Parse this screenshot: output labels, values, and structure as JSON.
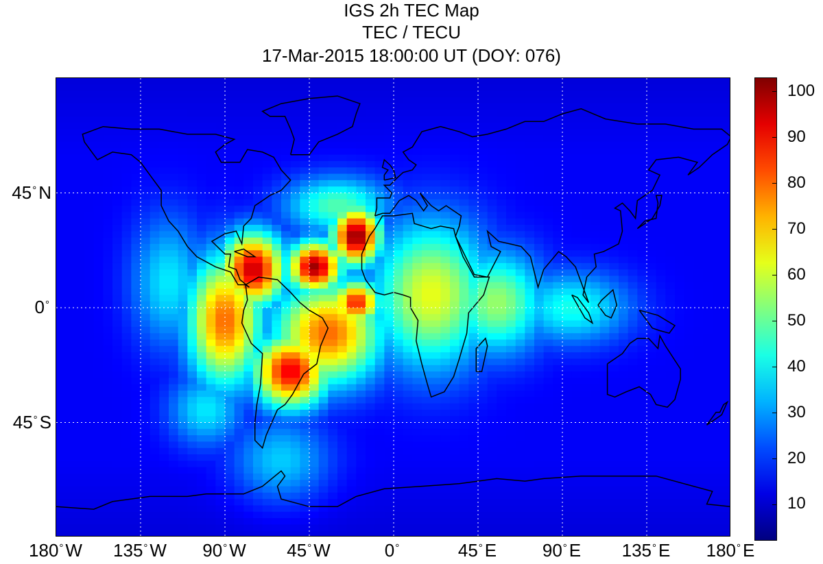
{
  "chart_data": {
    "type": "heatmap",
    "title": "IGS 2h TEC Map",
    "subtitle": "TEC / TECU",
    "timestamp": "17-Mar-2015 18:00:00 UT (DOY: 076)",
    "x_range": [
      -180,
      180
    ],
    "y_range": [
      -90,
      90
    ],
    "x_ticks": [
      {
        "value": -180,
        "label": "180",
        "hemi": "W"
      },
      {
        "value": -135,
        "label": "135",
        "hemi": "W"
      },
      {
        "value": -90,
        "label": "90",
        "hemi": "W"
      },
      {
        "value": -45,
        "label": "45",
        "hemi": "W"
      },
      {
        "value": 0,
        "label": "0",
        "hemi": ""
      },
      {
        "value": 45,
        "label": "45",
        "hemi": "E"
      },
      {
        "value": 90,
        "label": "90",
        "hemi": "E"
      },
      {
        "value": 135,
        "label": "135",
        "hemi": "E"
      },
      {
        "value": 180,
        "label": "180",
        "hemi": "E"
      }
    ],
    "y_ticks": [
      {
        "value": 45,
        "label": "45",
        "hemi": "N"
      },
      {
        "value": 0,
        "label": "0",
        "hemi": ""
      },
      {
        "value": -45,
        "label": "45",
        "hemi": "S"
      }
    ],
    "grid": true,
    "colorbar": {
      "range": [
        2,
        103
      ],
      "ticks": [
        10,
        20,
        30,
        40,
        50,
        60,
        70,
        80,
        90,
        100
      ],
      "colormap": "jet"
    },
    "background_tec": 14,
    "tec_peaks": [
      {
        "lon": -75,
        "lat": 15,
        "tec": 96,
        "sx": 12,
        "sy": 10
      },
      {
        "lon": -55,
        "lat": -25,
        "tec": 92,
        "sx": 14,
        "sy": 10
      },
      {
        "lon": -42,
        "lat": 16,
        "tec": 100,
        "sx": 10,
        "sy": 7
      },
      {
        "lon": -20,
        "lat": 28,
        "tec": 102,
        "sx": 9,
        "sy": 8
      },
      {
        "lon": -20,
        "lat": 2,
        "tec": 88,
        "sx": 9,
        "sy": 6
      },
      {
        "lon": -90,
        "lat": -5,
        "tec": 80,
        "sx": 14,
        "sy": 18
      },
      {
        "lon": -35,
        "lat": -10,
        "tec": 80,
        "sx": 20,
        "sy": 14
      },
      {
        "lon": 20,
        "lat": 5,
        "tec": 63,
        "sx": 22,
        "sy": 20
      },
      {
        "lon": 55,
        "lat": 2,
        "tec": 55,
        "sx": 18,
        "sy": 14
      },
      {
        "lon": 95,
        "lat": 0,
        "tec": 42,
        "sx": 22,
        "sy": 10
      },
      {
        "lon": -60,
        "lat": -60,
        "tec": 35,
        "sx": 18,
        "sy": 12
      },
      {
        "lon": -120,
        "lat": 10,
        "tec": 38,
        "sx": 14,
        "sy": 18
      },
      {
        "lon": -30,
        "lat": 40,
        "tec": 48,
        "sx": 20,
        "sy": 8
      },
      {
        "lon": -100,
        "lat": -40,
        "tec": 38,
        "sx": 14,
        "sy": 10
      }
    ]
  },
  "colors": {
    "grid": "#ffffff",
    "coastline": "#000000",
    "frame": "#000000"
  }
}
